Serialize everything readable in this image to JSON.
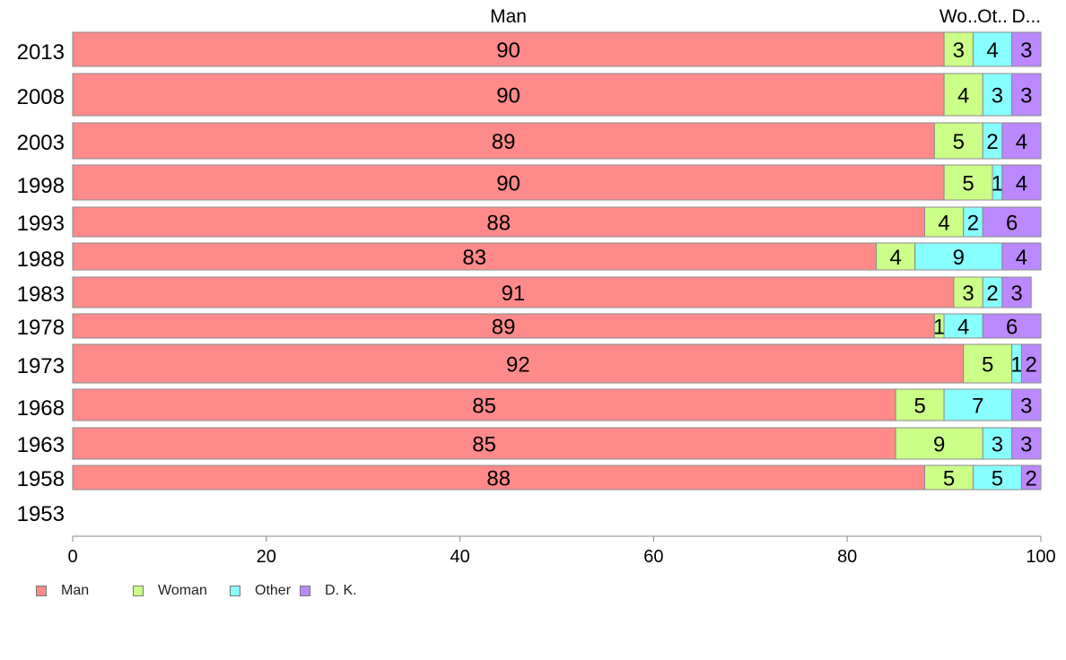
{
  "chart_data": {
    "type": "bar",
    "orientation": "horizontal",
    "stacked": true,
    "title": "",
    "xlabel": "",
    "ylabel": "",
    "xlim": [
      0,
      100
    ],
    "x_ticks": [
      0,
      20,
      40,
      60,
      80,
      100
    ],
    "grid": false,
    "legend_position": "bottom-left",
    "categories": [
      "2013",
      "2008",
      "2003",
      "1998",
      "1993",
      "1988",
      "1983",
      "1978",
      "1973",
      "1968",
      "1963",
      "1958",
      "1953"
    ],
    "series": [
      {
        "name": "Man",
        "color": "#ff8a8a",
        "values": [
          90,
          90,
          89,
          90,
          88,
          83,
          91,
          89,
          92,
          85,
          85,
          88,
          null
        ]
      },
      {
        "name": "Woman",
        "color": "#ccff88",
        "values": [
          3,
          4,
          5,
          5,
          4,
          4,
          3,
          1,
          5,
          5,
          9,
          5,
          null
        ]
      },
      {
        "name": "Other",
        "color": "#88ffff",
        "values": [
          4,
          3,
          2,
          1,
          2,
          9,
          2,
          4,
          1,
          7,
          3,
          5,
          null
        ]
      },
      {
        "name": "D. K.",
        "color": "#bb88ff",
        "values": [
          3,
          3,
          4,
          4,
          6,
          4,
          3,
          6,
          2,
          3,
          3,
          2,
          null
        ]
      }
    ],
    "top_labels": [
      "Man",
      "Wo..",
      "Ot..",
      "D..."
    ]
  }
}
